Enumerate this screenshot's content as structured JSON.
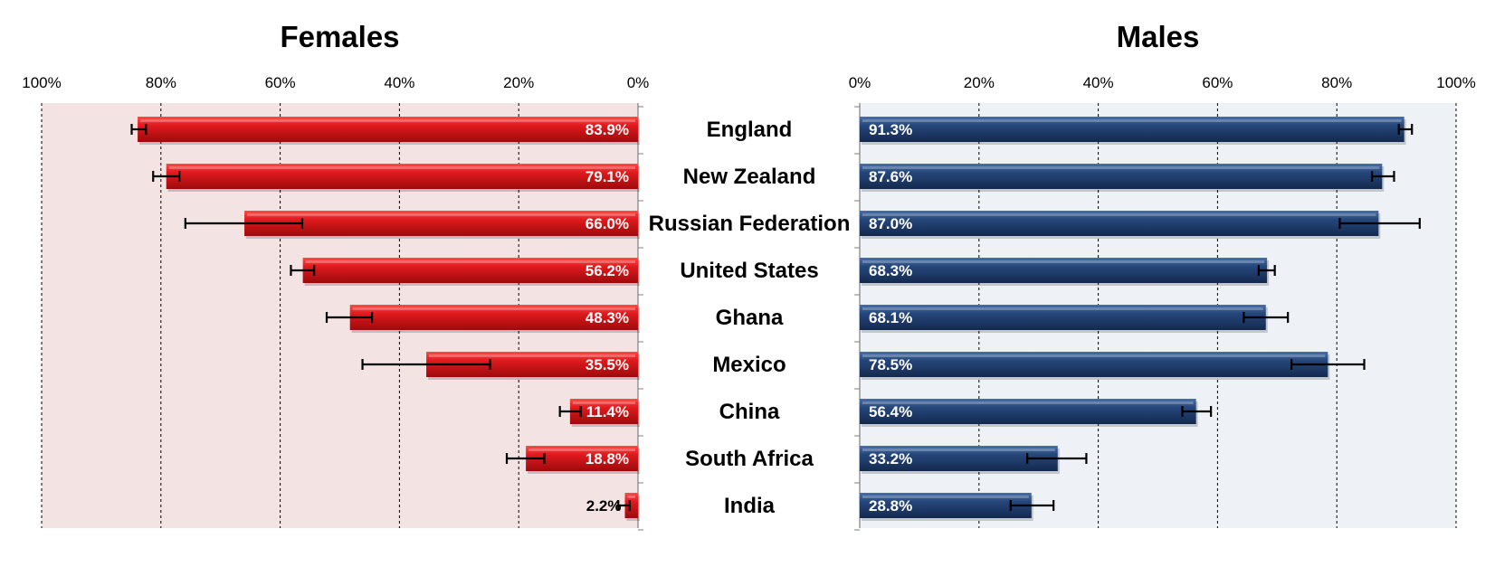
{
  "chart_data": [
    {
      "type": "bar",
      "orientation": "horizontal",
      "direction": "right-to-left",
      "title": "Females",
      "categories": [
        "England",
        "New Zealand",
        "Russian Federation",
        "United States",
        "Ghana",
        "Mexico",
        "China",
        "South Africa",
        "India"
      ],
      "values": [
        83.9,
        79.1,
        66.0,
        56.2,
        48.3,
        35.5,
        11.4,
        18.8,
        2.2
      ],
      "value_labels": [
        "83.9%",
        "79.1%",
        "66.0%",
        "56.2%",
        "48.3%",
        "35.5%",
        "11.4%",
        "18.8%",
        "2.2%"
      ],
      "error_low": [
        82.5,
        76.9,
        56.3,
        54.3,
        44.6,
        24.8,
        9.6,
        15.7,
        1.4
      ],
      "error_high": [
        84.9,
        81.3,
        75.9,
        58.2,
        52.2,
        46.2,
        13.1,
        22.0,
        3.3
      ],
      "xlim": [
        0,
        100
      ],
      "ticks": [
        100,
        80,
        60,
        40,
        20,
        0
      ],
      "tick_labels": [
        "100%",
        "80%",
        "60%",
        "40%",
        "20%",
        "0%"
      ],
      "grid": true,
      "bar_color": "#d81418",
      "background": "#f3e3e3"
    },
    {
      "type": "bar",
      "orientation": "horizontal",
      "direction": "left-to-right",
      "title": "Males",
      "categories": [
        "England",
        "New Zealand",
        "Russian Federation",
        "United States",
        "Ghana",
        "Mexico",
        "China",
        "South Africa",
        "India"
      ],
      "values": [
        91.3,
        87.6,
        87.0,
        68.3,
        68.1,
        78.5,
        56.4,
        33.2,
        28.8
      ],
      "value_labels": [
        "91.3%",
        "87.6%",
        "87.0%",
        "68.3%",
        "68.1%",
        "78.5%",
        "56.4%",
        "33.2%",
        "28.8%"
      ],
      "error_low": [
        90.4,
        85.9,
        80.5,
        66.9,
        64.4,
        72.4,
        54.1,
        28.1,
        25.3
      ],
      "error_high": [
        92.6,
        89.6,
        93.9,
        69.6,
        71.8,
        84.6,
        58.9,
        38.0,
        32.5
      ],
      "xlim": [
        0,
        100
      ],
      "ticks": [
        0,
        20,
        40,
        60,
        80,
        100
      ],
      "tick_labels": [
        "0%",
        "20%",
        "40%",
        "60%",
        "80%",
        "100%"
      ],
      "grid": true,
      "bar_color": "#1f3e6e",
      "background": "#eef2f7"
    }
  ]
}
